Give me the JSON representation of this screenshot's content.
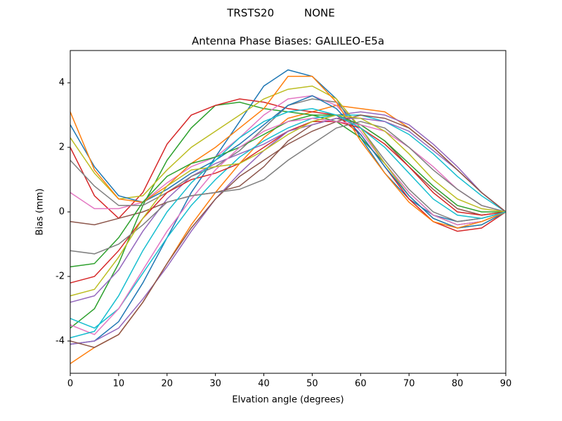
{
  "chart_data": {
    "type": "line",
    "suptitle": "TRSTS20         NONE",
    "title": "Antenna Phase Biases: GALILEO-E5a",
    "xlabel": "Elvation angle (degrees)",
    "ylabel": "Bias (mm)",
    "x": [
      0,
      5,
      10,
      15,
      20,
      25,
      30,
      35,
      40,
      45,
      50,
      55,
      60,
      65,
      70,
      75,
      80,
      85,
      90
    ],
    "xlim": [
      0,
      90
    ],
    "xticks": [
      0,
      10,
      20,
      30,
      40,
      50,
      60,
      70,
      80,
      90
    ],
    "ylim": [
      -5,
      5
    ],
    "yticks": [
      -4,
      -2,
      0,
      2,
      4
    ],
    "series": [
      {
        "color": "#1f77b4",
        "values": [
          -4.1,
          -4.0,
          -3.4,
          -2.2,
          -0.8,
          0.6,
          1.7,
          2.8,
          3.9,
          4.4,
          4.2,
          3.5,
          2.3,
          1.2,
          0.4,
          -0.1,
          -0.3,
          -0.2,
          0
        ]
      },
      {
        "color": "#ff7f0e",
        "values": [
          -4.7,
          -4.2,
          -3.8,
          -2.8,
          -1.6,
          -0.4,
          0.6,
          1.5,
          2.3,
          2.9,
          3.1,
          3.3,
          3.2,
          3.1,
          2.6,
          2.0,
          1.3,
          0.6,
          0
        ]
      },
      {
        "color": "#2ca02c",
        "values": [
          -3.6,
          -3.0,
          -1.6,
          0.2,
          1.6,
          2.6,
          3.3,
          3.4,
          3.2,
          3.1,
          3.0,
          2.8,
          2.3,
          1.5,
          0.6,
          -0.1,
          -0.4,
          -0.3,
          0
        ]
      },
      {
        "color": "#d62728",
        "values": [
          2.0,
          0.5,
          -0.2,
          0.6,
          2.1,
          3.0,
          3.3,
          3.5,
          3.4,
          3.2,
          3.1,
          3.0,
          2.4,
          1.4,
          0.4,
          -0.3,
          -0.6,
          -0.5,
          0
        ]
      },
      {
        "color": "#9467bd",
        "values": [
          -2.8,
          -2.6,
          -1.8,
          -0.6,
          0.4,
          1.1,
          1.5,
          1.8,
          2.1,
          2.5,
          2.8,
          3.0,
          3.1,
          3.0,
          2.7,
          2.1,
          1.4,
          0.6,
          0
        ]
      },
      {
        "color": "#8c564b",
        "values": [
          -0.3,
          -0.4,
          -0.2,
          0.0,
          0.3,
          0.5,
          0.6,
          0.8,
          1.4,
          2.2,
          2.7,
          2.9,
          2.7,
          2.2,
          1.4,
          0.7,
          0.1,
          -0.1,
          0
        ]
      },
      {
        "color": "#e377c2",
        "values": [
          0.6,
          0.1,
          0.1,
          0.3,
          0.9,
          1.4,
          1.7,
          2.3,
          3.0,
          3.5,
          3.6,
          3.3,
          2.5,
          1.5,
          0.6,
          -0.1,
          -0.4,
          -0.3,
          0
        ]
      },
      {
        "color": "#7f7f7f",
        "values": [
          1.6,
          0.8,
          0.2,
          0.2,
          0.6,
          1.1,
          1.4,
          1.9,
          2.6,
          3.3,
          3.5,
          3.4,
          2.6,
          1.6,
          0.7,
          0.0,
          -0.3,
          -0.2,
          0
        ]
      },
      {
        "color": "#bcbd22",
        "values": [
          2.3,
          1.2,
          0.4,
          0.5,
          1.3,
          2.0,
          2.5,
          3.0,
          3.5,
          3.8,
          3.9,
          3.5,
          2.6,
          1.5,
          0.5,
          -0.2,
          -0.5,
          -0.4,
          0
        ]
      },
      {
        "color": "#17becf",
        "values": [
          -3.3,
          -3.6,
          -3.0,
          -1.9,
          -0.8,
          0.2,
          1.0,
          1.7,
          2.2,
          2.6,
          2.9,
          3.0,
          3.0,
          2.8,
          2.4,
          1.8,
          1.1,
          0.5,
          0
        ]
      },
      {
        "color": "#1f77b4",
        "values": [
          2.7,
          1.4,
          0.5,
          0.3,
          0.7,
          1.2,
          1.6,
          2.1,
          2.7,
          3.3,
          3.6,
          3.2,
          2.4,
          1.4,
          0.5,
          -0.2,
          -0.5,
          -0.4,
          0
        ]
      },
      {
        "color": "#ff7f0e",
        "values": [
          3.1,
          1.3,
          0.4,
          0.3,
          0.8,
          1.5,
          2.0,
          2.6,
          3.2,
          4.2,
          4.2,
          3.4,
          2.2,
          1.2,
          0.3,
          -0.3,
          -0.5,
          -0.3,
          0
        ]
      },
      {
        "color": "#2ca02c",
        "values": [
          -1.7,
          -1.6,
          -0.8,
          0.3,
          1.1,
          1.5,
          1.7,
          2.0,
          2.4,
          2.8,
          3.0,
          3.0,
          2.7,
          2.2,
          1.5,
          0.8,
          0.2,
          0.0,
          0
        ]
      },
      {
        "color": "#d62728",
        "values": [
          -2.2,
          -2.0,
          -1.2,
          -0.2,
          0.6,
          1.0,
          1.2,
          1.5,
          2.0,
          2.5,
          2.8,
          2.8,
          2.6,
          2.1,
          1.4,
          0.6,
          0.0,
          -0.1,
          0
        ]
      },
      {
        "color": "#9467bd",
        "values": [
          -4.1,
          -4.0,
          -3.6,
          -2.7,
          -1.7,
          -0.6,
          0.4,
          1.2,
          1.9,
          2.5,
          2.7,
          2.9,
          2.9,
          2.8,
          2.5,
          1.9,
          1.3,
          0.6,
          0
        ]
      },
      {
        "color": "#8c564b",
        "values": [
          -4.0,
          -4.2,
          -3.8,
          -2.8,
          -1.6,
          -0.5,
          0.4,
          1.1,
          1.6,
          2.1,
          2.5,
          2.8,
          3.0,
          2.9,
          2.6,
          2.0,
          1.3,
          0.6,
          0
        ]
      },
      {
        "color": "#e377c2",
        "values": [
          -3.5,
          -3.8,
          -3.0,
          -1.8,
          -0.6,
          0.4,
          1.3,
          2.0,
          2.5,
          2.8,
          2.9,
          2.8,
          2.7,
          2.5,
          2.0,
          1.4,
          0.7,
          0.2,
          0
        ]
      },
      {
        "color": "#7f7f7f",
        "values": [
          -1.2,
          -1.3,
          -1.0,
          -0.4,
          0.3,
          0.5,
          0.6,
          0.7,
          1.0,
          1.6,
          2.1,
          2.6,
          2.8,
          2.6,
          2.0,
          1.3,
          0.7,
          0.2,
          0
        ]
      },
      {
        "color": "#bcbd22",
        "values": [
          -2.6,
          -2.4,
          -1.4,
          -0.2,
          0.8,
          1.3,
          1.4,
          1.5,
          1.9,
          2.4,
          2.8,
          3.0,
          2.9,
          2.5,
          1.8,
          1.0,
          0.4,
          0.1,
          0
        ]
      },
      {
        "color": "#17becf",
        "values": [
          -3.9,
          -3.7,
          -2.6,
          -1.2,
          0.0,
          0.9,
          1.6,
          2.3,
          2.8,
          3.1,
          3.2,
          3.0,
          2.6,
          2.0,
          1.2,
          0.4,
          -0.1,
          -0.2,
          0
        ]
      }
    ]
  }
}
